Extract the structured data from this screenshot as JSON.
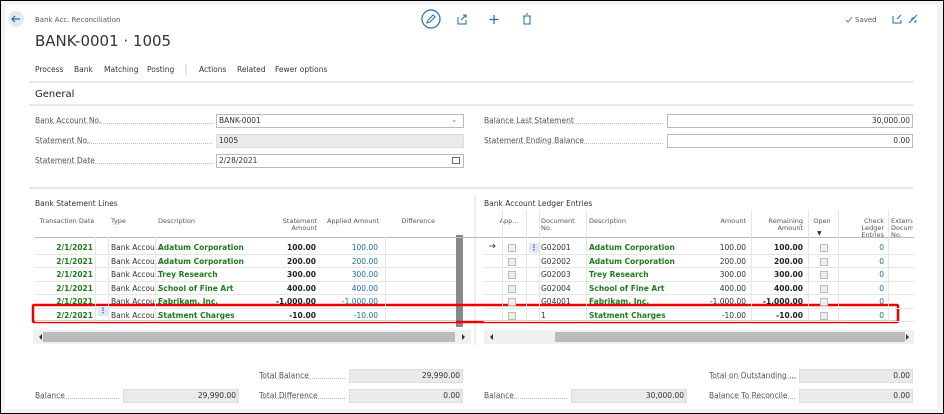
{
  "header": {
    "breadcrumb": "Bank Acc. Reconciliation",
    "title": "BANK-0001 · 1005",
    "saved": "Saved"
  },
  "menu": [
    "Process",
    "Bank",
    "Matching",
    "Posting",
    "Actions",
    "Related",
    "Fewer options"
  ],
  "general": {
    "title": "General",
    "left": [
      {
        "label": "Bank Account No.",
        "value": "BANK-0001"
      },
      {
        "label": "Statement No.",
        "value": "1005"
      },
      {
        "label": "Statement Date",
        "value": "2/28/2021"
      }
    ],
    "right": [
      {
        "label": "Balance Last Statement",
        "value": "30,000.00"
      },
      {
        "label": "Statement Ending Balance",
        "value": "0.00"
      }
    ]
  },
  "lines": {
    "title": "Bank Statement Lines",
    "columns": [
      "Transaction Date",
      "Type",
      "Description",
      "Statement Amount",
      "Applied Amount",
      "Difference"
    ],
    "rows": [
      [
        "2/1/2021",
        "Bank Accou...",
        "Adatum Corporation",
        "100.00",
        "100.00"
      ],
      [
        "2/1/2021",
        "Bank Accou...",
        "Adatum Corporation",
        "200.00",
        "200.00"
      ],
      [
        "2/1/2021",
        "Bank Accou...",
        "Trey Research",
        "300.00",
        "300.00"
      ],
      [
        "2/1/2021",
        "Bank Accou...",
        "School of Fine Art",
        "400.00",
        "400.00"
      ],
      [
        "2/1/2021",
        "Bank Accou...",
        "Fabrikam, Inc.",
        "-1,000.00",
        "-1,000.00"
      ],
      [
        "2/2/2021",
        "Bank Accou...",
        "Statment Charges",
        "-10.00",
        "-10.00"
      ]
    ]
  },
  "ledger": {
    "title": "Bank Account Ledger Entries",
    "columns": [
      "App...",
      "Document No.",
      "Description",
      "Amount",
      "Remaining Amount",
      "Open",
      "Check Ledger Entries",
      "External Document No."
    ],
    "rows": [
      [
        "G02001",
        "Adatum Corporation",
        "100.00",
        "100.00",
        "0"
      ],
      [
        "G02002",
        "Adatum Corporation",
        "200.00",
        "200.00",
        "0"
      ],
      [
        "G02003",
        "Trey Research",
        "300.00",
        "300.00",
        "0"
      ],
      [
        "G02004",
        "School of Fine Art",
        "400.00",
        "400.00",
        "0"
      ],
      [
        "G04001",
        "Fabrikam, Inc.",
        "-1,000.00",
        "-1,000.00",
        "0"
      ],
      [
        "1",
        "Statment Charges",
        "-10.00",
        "-10.00",
        "0"
      ]
    ]
  },
  "totals": {
    "left": [
      {
        "label": "Total Balance",
        "value": "29,990.00"
      },
      {
        "label": "Balance",
        "value": "29,990.00"
      },
      {
        "label": "Total Difference",
        "value": "0.00"
      }
    ],
    "right": [
      {
        "label": "Total on Outstanding ...",
        "value": "0.00"
      },
      {
        "label": "Balance",
        "value": "30,000.00"
      },
      {
        "label": "Balance To Reconcile",
        "value": "0.00"
      }
    ]
  }
}
